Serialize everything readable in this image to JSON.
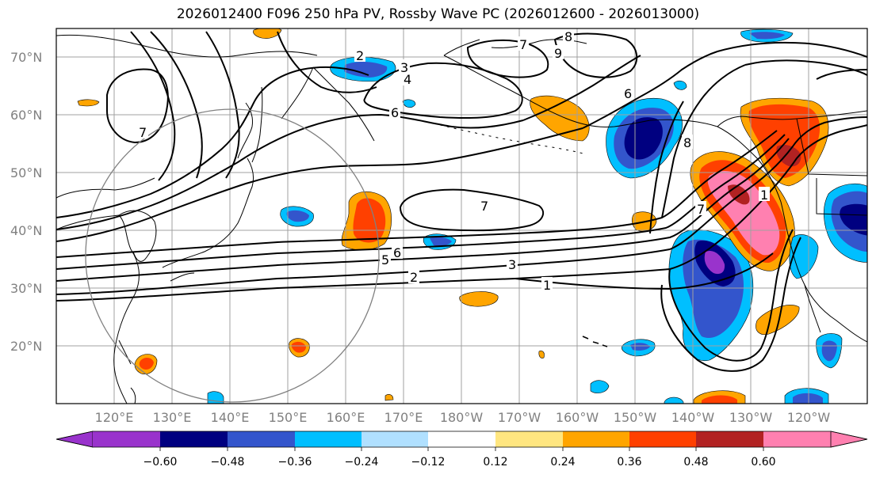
{
  "title": "2026012400 F096 250 hPa PV, Rossby Wave PC (2026012600 - 2026013000)",
  "lat_labels": [
    "70°N",
    "60°N",
    "50°N",
    "40°N",
    "30°N",
    "20°N"
  ],
  "lon_labels": [
    "120°E",
    "130°E",
    "140°E",
    "150°E",
    "160°E",
    "170°E",
    "180°W",
    "170°W",
    "160°W",
    "150°W",
    "140°W",
    "130°W",
    "120°W"
  ],
  "contour_labels": [
    "1",
    "2",
    "3",
    "5",
    "6",
    "7",
    "7",
    "7",
    "8",
    "9",
    "6",
    "4",
    "3",
    "2",
    "6",
    "8",
    "7",
    "1"
  ],
  "colorbar": {
    "tick_labels": [
      "−0.60",
      "−0.48",
      "−0.36",
      "−0.24",
      "−0.12",
      "0.12",
      "0.24",
      "0.36",
      "0.48",
      "0.60"
    ],
    "colors": [
      "#9933cc",
      "#000080",
      "#3355cc",
      "#00bfff",
      "#b0e0ff",
      "#ffffff",
      "#ffe680",
      "#ffa500",
      "#ff4000",
      "#b22222",
      "#ff80b0"
    ]
  },
  "fill_colors": {
    "purple": "#9933cc",
    "navy": "#000080",
    "blue": "#3355cc",
    "cyan": "#00bfff",
    "lightblue": "#b0e0ff",
    "yellow": "#ffe680",
    "orange": "#ffa500",
    "redorange": "#ff4000",
    "darkred": "#b22222",
    "pink": "#ff80b0"
  }
}
